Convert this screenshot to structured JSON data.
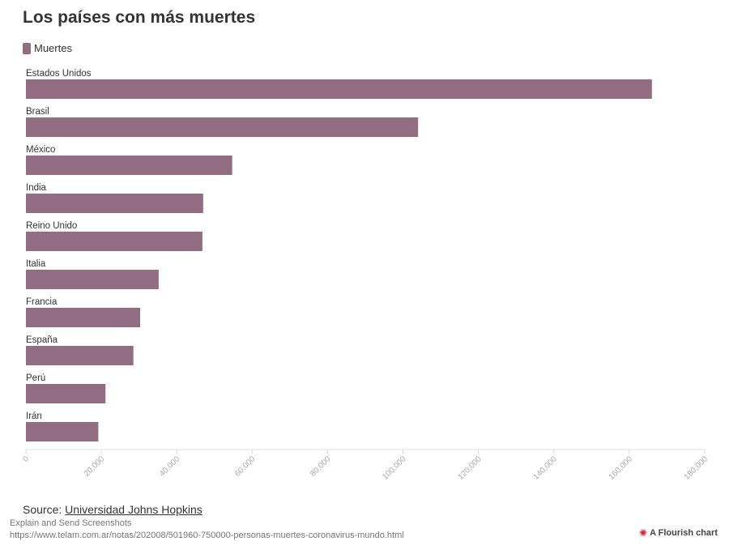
{
  "title": "Los países con más muertes",
  "legend": {
    "label": "Muertes",
    "color": "#926d82"
  },
  "source": {
    "prefix": "Source: ",
    "link_text": "Universidad Johns Hopkins"
  },
  "footer": {
    "line1": "Explain and Send Screenshots",
    "line2": "https://www.telam.com.ar/notas/202008/501960-750000-personas-muertes-coronavirus-mundo.html",
    "flourish_label": "A Flourish chart",
    "flourish_icon": "flourish-logo-icon"
  },
  "chart_data": {
    "type": "bar",
    "orientation": "horizontal",
    "categories": [
      "Estados Unidos",
      "Brasil",
      "México",
      "India",
      "Reino Unido",
      "Italia",
      "Francia",
      "España",
      "Perú",
      "Irán"
    ],
    "series": [
      {
        "name": "Muertes",
        "values": [
          166000,
          104000,
          54700,
          47000,
          46800,
          35200,
          30300,
          28500,
          21100,
          19200
        ]
      }
    ],
    "xlim": [
      0,
      180000
    ],
    "x_ticks": [
      "0",
      "20,000",
      "40,000",
      "60,000",
      "80,000",
      "100,000",
      "120,000",
      "140,000",
      "160,000",
      "180,000"
    ],
    "grid": false,
    "bar_color": "#926d82"
  }
}
